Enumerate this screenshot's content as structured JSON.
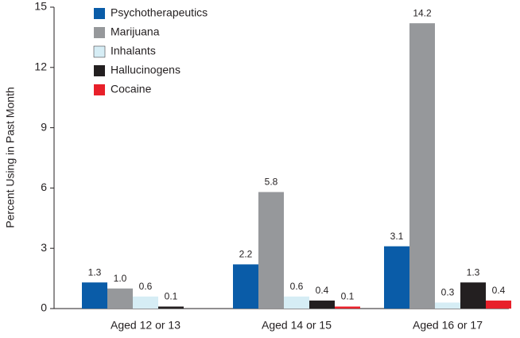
{
  "chart_data": {
    "type": "bar",
    "y_label": "Percent Using in Past Month",
    "categories": [
      "Aged 12 or 13",
      "Aged 14 or 15",
      "Aged 16 or 17"
    ],
    "series": [
      {
        "name": "Psychotherapeutics",
        "color": "#0a5ca8",
        "values": [
          1.3,
          2.2,
          3.1
        ],
        "value_labels": [
          "1.3",
          "2.2",
          "3.1"
        ]
      },
      {
        "name": "Marijuana",
        "color": "#96989b",
        "values": [
          1.0,
          5.8,
          14.2
        ],
        "value_labels": [
          "1.0",
          "5.8",
          "14.2"
        ]
      },
      {
        "name": "Inhalants",
        "color": "#d6edf5",
        "values": [
          0.6,
          0.6,
          0.3
        ],
        "value_labels": [
          "0.6",
          "0.6",
          "0.3"
        ]
      },
      {
        "name": "Hallucinogens",
        "color": "#231f20",
        "values": [
          0.1,
          0.4,
          1.3
        ],
        "value_labels": [
          "0.1",
          "0.4",
          "1.3"
        ]
      },
      {
        "name": "Cocaine",
        "color": "#e8202a",
        "values": [
          null,
          0.1,
          0.4
        ],
        "value_labels": [
          null,
          "0.1",
          "0.4"
        ]
      }
    ],
    "ylim": [
      0,
      15
    ],
    "yticks": [
      0,
      3,
      6,
      9,
      12,
      15
    ],
    "grid": false,
    "legend": "top-left"
  }
}
